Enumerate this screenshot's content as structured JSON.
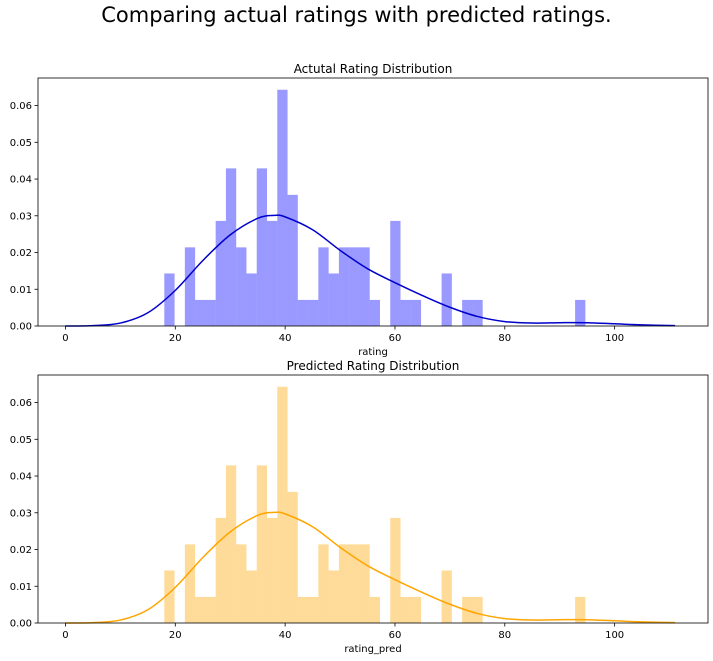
{
  "figure": {
    "suptitle": "Comparing actual ratings with predicted ratings."
  },
  "chart_data": [
    {
      "type": "histogram",
      "title": "Actutal Rating Distribution",
      "xlabel": "rating",
      "ylabel": "",
      "xlim": [
        -5,
        117
      ],
      "ylim": [
        0,
        0.0675
      ],
      "xticks": [
        0,
        20,
        40,
        60,
        80,
        100
      ],
      "yticks": [
        0.0,
        0.01,
        0.02,
        0.03,
        0.04,
        0.05,
        0.06
      ],
      "bar_color": "#0000ff",
      "bar_alpha": 0.4,
      "kde_color": "#0000cc",
      "bin_width": 1.87,
      "bins": [
        {
          "x0": 18.0,
          "x1": 19.87,
          "density": 0.0143
        },
        {
          "x0": 21.74,
          "x1": 23.61,
          "density": 0.0214
        },
        {
          "x0": 23.61,
          "x1": 25.48,
          "density": 0.0071
        },
        {
          "x0": 25.48,
          "x1": 27.35,
          "density": 0.0071
        },
        {
          "x0": 27.35,
          "x1": 29.22,
          "density": 0.0286
        },
        {
          "x0": 29.22,
          "x1": 31.09,
          "density": 0.0429
        },
        {
          "x0": 31.09,
          "x1": 32.96,
          "density": 0.0214
        },
        {
          "x0": 32.96,
          "x1": 34.83,
          "density": 0.0143
        },
        {
          "x0": 34.83,
          "x1": 36.7,
          "density": 0.0429
        },
        {
          "x0": 36.7,
          "x1": 38.57,
          "density": 0.0286
        },
        {
          "x0": 38.57,
          "x1": 40.44,
          "density": 0.0643
        },
        {
          "x0": 40.44,
          "x1": 42.31,
          "density": 0.0357
        },
        {
          "x0": 42.31,
          "x1": 44.18,
          "density": 0.0071
        },
        {
          "x0": 44.18,
          "x1": 46.05,
          "density": 0.0071
        },
        {
          "x0": 46.05,
          "x1": 47.92,
          "density": 0.0214
        },
        {
          "x0": 47.92,
          "x1": 49.79,
          "density": 0.0143
        },
        {
          "x0": 49.79,
          "x1": 51.66,
          "density": 0.0214
        },
        {
          "x0": 51.66,
          "x1": 53.53,
          "density": 0.0214
        },
        {
          "x0": 53.53,
          "x1": 55.4,
          "density": 0.0214
        },
        {
          "x0": 55.4,
          "x1": 57.27,
          "density": 0.0071
        },
        {
          "x0": 59.14,
          "x1": 61.01,
          "density": 0.0286
        },
        {
          "x0": 61.01,
          "x1": 62.88,
          "density": 0.0071
        },
        {
          "x0": 62.88,
          "x1": 64.75,
          "density": 0.0071
        },
        {
          "x0": 68.49,
          "x1": 70.36,
          "density": 0.0143
        },
        {
          "x0": 72.23,
          "x1": 74.1,
          "density": 0.0071
        },
        {
          "x0": 74.1,
          "x1": 75.97,
          "density": 0.0071
        },
        {
          "x0": 92.8,
          "x1": 94.67,
          "density": 0.0071
        }
      ],
      "kde": {
        "x": [
          0,
          5,
          10,
          15,
          20,
          25,
          30,
          35,
          38,
          40,
          45,
          50,
          55,
          60,
          65,
          70,
          75,
          80,
          85,
          90,
          95,
          100,
          105,
          111
        ],
        "y": [
          0.0,
          0.0001,
          0.0008,
          0.0036,
          0.0097,
          0.0178,
          0.0248,
          0.0293,
          0.0301,
          0.0297,
          0.0262,
          0.0206,
          0.0156,
          0.0118,
          0.0083,
          0.0051,
          0.0026,
          0.0012,
          0.0008,
          0.0009,
          0.0009,
          0.0006,
          0.0003,
          0.0001
        ]
      }
    },
    {
      "type": "histogram",
      "title": "Predicted Rating Distribution",
      "xlabel": "rating_pred",
      "ylabel": "",
      "xlim": [
        -5,
        117
      ],
      "ylim": [
        0,
        0.0675
      ],
      "xticks": [
        0,
        20,
        40,
        60,
        80,
        100
      ],
      "yticks": [
        0.0,
        0.01,
        0.02,
        0.03,
        0.04,
        0.05,
        0.06
      ],
      "bar_color": "#ffa500",
      "bar_alpha": 0.4,
      "kde_color": "#ffa500",
      "bin_width": 1.87,
      "bins": [
        {
          "x0": 18.0,
          "x1": 19.87,
          "density": 0.0143
        },
        {
          "x0": 21.74,
          "x1": 23.61,
          "density": 0.0214
        },
        {
          "x0": 23.61,
          "x1": 25.48,
          "density": 0.0071
        },
        {
          "x0": 25.48,
          "x1": 27.35,
          "density": 0.0071
        },
        {
          "x0": 27.35,
          "x1": 29.22,
          "density": 0.0286
        },
        {
          "x0": 29.22,
          "x1": 31.09,
          "density": 0.0429
        },
        {
          "x0": 31.09,
          "x1": 32.96,
          "density": 0.0214
        },
        {
          "x0": 32.96,
          "x1": 34.83,
          "density": 0.0143
        },
        {
          "x0": 34.83,
          "x1": 36.7,
          "density": 0.0429
        },
        {
          "x0": 36.7,
          "x1": 38.57,
          "density": 0.0286
        },
        {
          "x0": 38.57,
          "x1": 40.44,
          "density": 0.0643
        },
        {
          "x0": 40.44,
          "x1": 42.31,
          "density": 0.0357
        },
        {
          "x0": 42.31,
          "x1": 44.18,
          "density": 0.0071
        },
        {
          "x0": 44.18,
          "x1": 46.05,
          "density": 0.0071
        },
        {
          "x0": 46.05,
          "x1": 47.92,
          "density": 0.0214
        },
        {
          "x0": 47.92,
          "x1": 49.79,
          "density": 0.0143
        },
        {
          "x0": 49.79,
          "x1": 51.66,
          "density": 0.0214
        },
        {
          "x0": 51.66,
          "x1": 53.53,
          "density": 0.0214
        },
        {
          "x0": 53.53,
          "x1": 55.4,
          "density": 0.0214
        },
        {
          "x0": 55.4,
          "x1": 57.27,
          "density": 0.0071
        },
        {
          "x0": 59.14,
          "x1": 61.01,
          "density": 0.0286
        },
        {
          "x0": 61.01,
          "x1": 62.88,
          "density": 0.0071
        },
        {
          "x0": 62.88,
          "x1": 64.75,
          "density": 0.0071
        },
        {
          "x0": 68.49,
          "x1": 70.36,
          "density": 0.0143
        },
        {
          "x0": 72.23,
          "x1": 74.1,
          "density": 0.0071
        },
        {
          "x0": 74.1,
          "x1": 75.97,
          "density": 0.0071
        },
        {
          "x0": 92.8,
          "x1": 94.67,
          "density": 0.0071
        }
      ],
      "kde": {
        "x": [
          0,
          5,
          10,
          15,
          20,
          25,
          30,
          35,
          38,
          40,
          45,
          50,
          55,
          60,
          65,
          70,
          75,
          80,
          85,
          90,
          95,
          100,
          105,
          111
        ],
        "y": [
          0.0,
          0.0001,
          0.0008,
          0.0036,
          0.0097,
          0.0178,
          0.0248,
          0.0293,
          0.0301,
          0.0297,
          0.0262,
          0.0206,
          0.0156,
          0.0118,
          0.0083,
          0.0051,
          0.0026,
          0.0012,
          0.0008,
          0.0009,
          0.0009,
          0.0006,
          0.0003,
          0.0001
        ]
      }
    }
  ]
}
